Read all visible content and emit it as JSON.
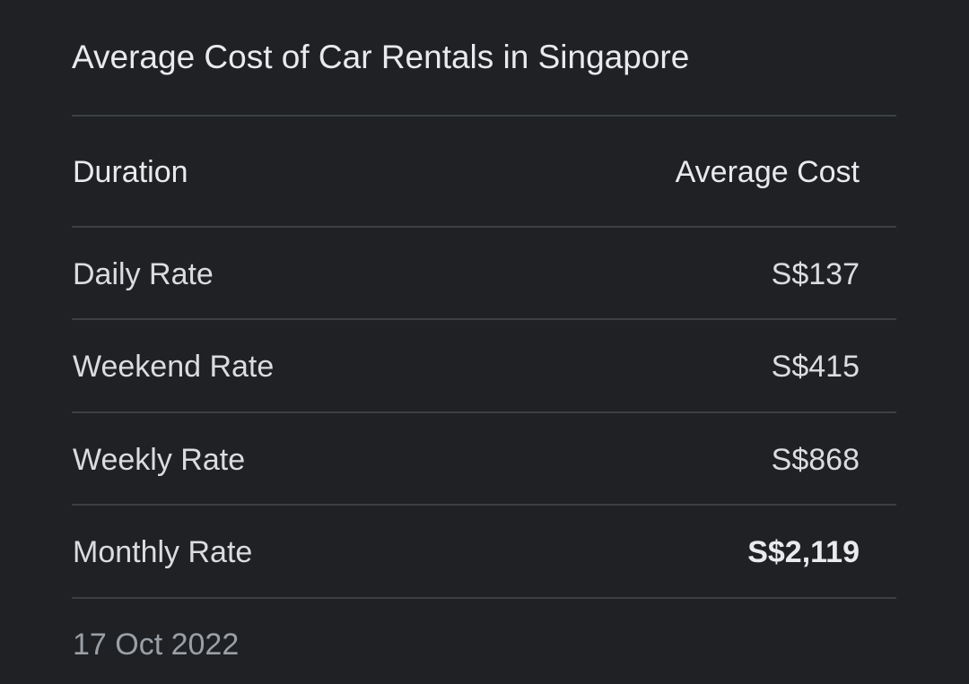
{
  "title": "Average Cost of Car Rentals in Singapore",
  "table": {
    "headers": {
      "duration": "Duration",
      "average_cost": "Average Cost"
    },
    "rows": [
      {
        "duration": "Daily Rate",
        "average_cost": "S$137"
      },
      {
        "duration": "Weekend Rate",
        "average_cost": "S$415"
      },
      {
        "duration": "Weekly Rate",
        "average_cost": "S$868"
      },
      {
        "duration": "Monthly Rate",
        "average_cost": "S$2,119"
      }
    ]
  },
  "date": "17 Oct 2022",
  "colors": {
    "background": "#202124",
    "text": "#dadce0",
    "divider": "#3c4043",
    "muted": "#9aa0a6"
  }
}
